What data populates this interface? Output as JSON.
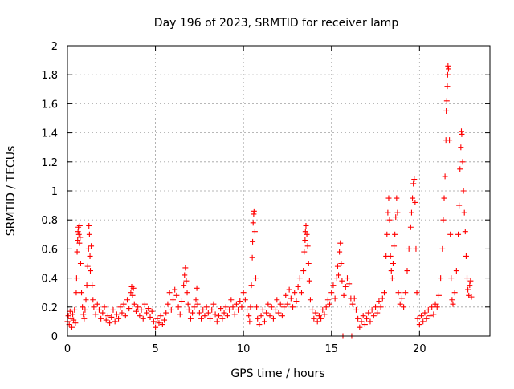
{
  "chart_data": {
    "type": "scatter",
    "title": "Day 196 of 2023, SRMTID for receiver lamp",
    "xlabel": "GPS time / hours",
    "ylabel": "SRMTID / TECUs",
    "xlim": [
      0,
      24
    ],
    "ylim": [
      0,
      2
    ],
    "grid": true,
    "marker": "+",
    "series_color": "#ff0000",
    "x_ticks": [
      0,
      5,
      10,
      15,
      20
    ],
    "x_tick_labels": [
      "0",
      "5",
      "10",
      "15",
      "20"
    ],
    "y_ticks": [
      0,
      0.2,
      0.4,
      0.6,
      0.8,
      1,
      1.2,
      1.4,
      1.6,
      1.8,
      2
    ],
    "y_tick_labels": [
      "0",
      "0.2",
      "0.4",
      "0.6",
      "0.8",
      "1",
      "1.2",
      "1.4",
      "1.6",
      "1.8",
      "2"
    ],
    "series": [
      {
        "name": "SRMTID",
        "points": [
          [
            0.0,
            0.1
          ],
          [
            0.05,
            0.14
          ],
          [
            0.1,
            0.08
          ],
          [
            0.15,
            0.17
          ],
          [
            0.2,
            0.12
          ],
          [
            0.25,
            0.06
          ],
          [
            0.3,
            0.15
          ],
          [
            0.35,
            0.11
          ],
          [
            0.4,
            0.18
          ],
          [
            0.45,
            0.09
          ],
          [
            0.5,
            0.3
          ],
          [
            0.52,
            0.4
          ],
          [
            0.55,
            0.58
          ],
          [
            0.58,
            0.66
          ],
          [
            0.6,
            0.72
          ],
          [
            0.62,
            0.75
          ],
          [
            0.65,
            0.7
          ],
          [
            0.68,
            0.64
          ],
          [
            0.7,
            0.76
          ],
          [
            0.72,
            0.68
          ],
          [
            0.75,
            0.5
          ],
          [
            0.8,
            0.3
          ],
          [
            0.85,
            0.2
          ],
          [
            0.9,
            0.15
          ],
          [
            0.95,
            0.12
          ],
          [
            1.0,
            0.18
          ],
          [
            1.05,
            0.25
          ],
          [
            1.1,
            0.35
          ],
          [
            1.15,
            0.48
          ],
          [
            1.2,
            0.6
          ],
          [
            1.22,
            0.76
          ],
          [
            1.25,
            0.7
          ],
          [
            1.28,
            0.55
          ],
          [
            1.3,
            0.45
          ],
          [
            1.35,
            0.62
          ],
          [
            1.4,
            0.35
          ],
          [
            1.45,
            0.25
          ],
          [
            1.5,
            0.2
          ],
          [
            1.6,
            0.15
          ],
          [
            1.7,
            0.22
          ],
          [
            1.8,
            0.18
          ],
          [
            1.9,
            0.12
          ],
          [
            2.0,
            0.16
          ],
          [
            2.1,
            0.2
          ],
          [
            2.2,
            0.11
          ],
          [
            2.3,
            0.14
          ],
          [
            2.4,
            0.09
          ],
          [
            2.5,
            0.13
          ],
          [
            2.6,
            0.18
          ],
          [
            2.7,
            0.1
          ],
          [
            2.8,
            0.15
          ],
          [
            2.9,
            0.12
          ],
          [
            3.0,
            0.2
          ],
          [
            3.1,
            0.16
          ],
          [
            3.2,
            0.22
          ],
          [
            3.3,
            0.14
          ],
          [
            3.4,
            0.25
          ],
          [
            3.5,
            0.19
          ],
          [
            3.6,
            0.3
          ],
          [
            3.65,
            0.34
          ],
          [
            3.7,
            0.28
          ],
          [
            3.75,
            0.33
          ],
          [
            3.8,
            0.22
          ],
          [
            3.9,
            0.17
          ],
          [
            4.0,
            0.2
          ],
          [
            4.1,
            0.14
          ],
          [
            4.2,
            0.18
          ],
          [
            4.3,
            0.12
          ],
          [
            4.4,
            0.22
          ],
          [
            4.5,
            0.16
          ],
          [
            4.6,
            0.19
          ],
          [
            4.7,
            0.13
          ],
          [
            4.8,
            0.17
          ],
          [
            4.9,
            0.1
          ],
          [
            5.0,
            0.06
          ],
          [
            5.1,
            0.12
          ],
          [
            5.2,
            0.09
          ],
          [
            5.3,
            0.14
          ],
          [
            5.4,
            0.08
          ],
          [
            5.5,
            0.11
          ],
          [
            5.6,
            0.16
          ],
          [
            5.7,
            0.22
          ],
          [
            5.8,
            0.3
          ],
          [
            5.9,
            0.18
          ],
          [
            6.0,
            0.25
          ],
          [
            6.1,
            0.32
          ],
          [
            6.2,
            0.28
          ],
          [
            6.3,
            0.2
          ],
          [
            6.4,
            0.15
          ],
          [
            6.5,
            0.24
          ],
          [
            6.6,
            0.35
          ],
          [
            6.65,
            0.42
          ],
          [
            6.7,
            0.47
          ],
          [
            6.75,
            0.38
          ],
          [
            6.8,
            0.3
          ],
          [
            6.85,
            0.22
          ],
          [
            6.9,
            0.18
          ],
          [
            7.0,
            0.12
          ],
          [
            7.1,
            0.16
          ],
          [
            7.2,
            0.2
          ],
          [
            7.3,
            0.25
          ],
          [
            7.35,
            0.33
          ],
          [
            7.4,
            0.22
          ],
          [
            7.5,
            0.16
          ],
          [
            7.6,
            0.12
          ],
          [
            7.7,
            0.18
          ],
          [
            7.8,
            0.14
          ],
          [
            7.9,
            0.2
          ],
          [
            8.0,
            0.16
          ],
          [
            8.1,
            0.12
          ],
          [
            8.2,
            0.18
          ],
          [
            8.3,
            0.22
          ],
          [
            8.4,
            0.15
          ],
          [
            8.5,
            0.1
          ],
          [
            8.6,
            0.14
          ],
          [
            8.7,
            0.19
          ],
          [
            8.8,
            0.12
          ],
          [
            8.9,
            0.16
          ],
          [
            9.0,
            0.2
          ],
          [
            9.1,
            0.14
          ],
          [
            9.2,
            0.18
          ],
          [
            9.3,
            0.25
          ],
          [
            9.4,
            0.2
          ],
          [
            9.5,
            0.15
          ],
          [
            9.6,
            0.22
          ],
          [
            9.7,
            0.18
          ],
          [
            9.8,
            0.24
          ],
          [
            9.9,
            0.2
          ],
          [
            10.0,
            0.3
          ],
          [
            10.1,
            0.25
          ],
          [
            10.2,
            0.18
          ],
          [
            10.3,
            0.14
          ],
          [
            10.35,
            0.1
          ],
          [
            10.4,
            0.2
          ],
          [
            10.45,
            0.35
          ],
          [
            10.5,
            0.54
          ],
          [
            10.52,
            0.65
          ],
          [
            10.55,
            0.78
          ],
          [
            10.58,
            0.84
          ],
          [
            10.6,
            0.86
          ],
          [
            10.65,
            0.72
          ],
          [
            10.7,
            0.4
          ],
          [
            10.75,
            0.2
          ],
          [
            10.8,
            0.12
          ],
          [
            10.9,
            0.08
          ],
          [
            11.0,
            0.14
          ],
          [
            11.1,
            0.18
          ],
          [
            11.2,
            0.1
          ],
          [
            11.3,
            0.16
          ],
          [
            11.4,
            0.22
          ],
          [
            11.5,
            0.14
          ],
          [
            11.6,
            0.2
          ],
          [
            11.7,
            0.12
          ],
          [
            11.8,
            0.18
          ],
          [
            11.9,
            0.25
          ],
          [
            12.0,
            0.16
          ],
          [
            12.1,
            0.22
          ],
          [
            12.2,
            0.14
          ],
          [
            12.3,
            0.2
          ],
          [
            12.4,
            0.28
          ],
          [
            12.5,
            0.22
          ],
          [
            12.6,
            0.32
          ],
          [
            12.7,
            0.26
          ],
          [
            12.8,
            0.2
          ],
          [
            12.9,
            0.3
          ],
          [
            13.0,
            0.24
          ],
          [
            13.1,
            0.34
          ],
          [
            13.2,
            0.4
          ],
          [
            13.3,
            0.3
          ],
          [
            13.4,
            0.45
          ],
          [
            13.45,
            0.58
          ],
          [
            13.5,
            0.66
          ],
          [
            13.52,
            0.72
          ],
          [
            13.55,
            0.76
          ],
          [
            13.6,
            0.7
          ],
          [
            13.65,
            0.62
          ],
          [
            13.7,
            0.5
          ],
          [
            13.75,
            0.38
          ],
          [
            13.8,
            0.25
          ],
          [
            13.9,
            0.18
          ],
          [
            14.0,
            0.12
          ],
          [
            14.1,
            0.16
          ],
          [
            14.2,
            0.1
          ],
          [
            14.3,
            0.14
          ],
          [
            14.4,
            0.12
          ],
          [
            14.5,
            0.18
          ],
          [
            14.6,
            0.15
          ],
          [
            14.7,
            0.2
          ],
          [
            14.8,
            0.25
          ],
          [
            14.9,
            0.22
          ],
          [
            15.0,
            0.3
          ],
          [
            15.1,
            0.35
          ],
          [
            15.2,
            0.26
          ],
          [
            15.3,
            0.4
          ],
          [
            15.35,
            0.48
          ],
          [
            15.4,
            0.42
          ],
          [
            15.45,
            0.58
          ],
          [
            15.5,
            0.64
          ],
          [
            15.55,
            0.5
          ],
          [
            15.6,
            0.38
          ],
          [
            15.65,
            0.0
          ],
          [
            15.7,
            0.28
          ],
          [
            15.8,
            0.34
          ],
          [
            15.9,
            0.4
          ],
          [
            16.0,
            0.36
          ],
          [
            16.1,
            0.26
          ],
          [
            16.15,
            0.0
          ],
          [
            16.2,
            0.22
          ],
          [
            16.3,
            0.26
          ],
          [
            16.4,
            0.18
          ],
          [
            16.5,
            0.12
          ],
          [
            16.6,
            0.06
          ],
          [
            16.7,
            0.1
          ],
          [
            16.8,
            0.14
          ],
          [
            16.9,
            0.08
          ],
          [
            17.0,
            0.12
          ],
          [
            17.1,
            0.16
          ],
          [
            17.2,
            0.1
          ],
          [
            17.3,
            0.18
          ],
          [
            17.4,
            0.14
          ],
          [
            17.5,
            0.2
          ],
          [
            17.6,
            0.16
          ],
          [
            17.7,
            0.24
          ],
          [
            17.8,
            0.2
          ],
          [
            17.9,
            0.26
          ],
          [
            18.0,
            0.3
          ],
          [
            18.1,
            0.55
          ],
          [
            18.15,
            0.7
          ],
          [
            18.2,
            0.85
          ],
          [
            18.25,
            0.95
          ],
          [
            18.3,
            0.8
          ],
          [
            18.35,
            0.55
          ],
          [
            18.4,
            0.45
          ],
          [
            18.45,
            0.4
          ],
          [
            18.5,
            0.5
          ],
          [
            18.55,
            0.62
          ],
          [
            18.6,
            0.7
          ],
          [
            18.65,
            0.82
          ],
          [
            18.7,
            0.95
          ],
          [
            18.75,
            0.85
          ],
          [
            18.8,
            0.3
          ],
          [
            18.9,
            0.22
          ],
          [
            19.0,
            0.26
          ],
          [
            19.1,
            0.2
          ],
          [
            19.2,
            0.3
          ],
          [
            19.3,
            0.45
          ],
          [
            19.4,
            0.6
          ],
          [
            19.5,
            0.75
          ],
          [
            19.55,
            0.85
          ],
          [
            19.6,
            0.95
          ],
          [
            19.65,
            1.05
          ],
          [
            19.7,
            1.08
          ],
          [
            19.75,
            0.92
          ],
          [
            19.8,
            0.6
          ],
          [
            19.85,
            0.3
          ],
          [
            19.9,
            0.12
          ],
          [
            20.0,
            0.08
          ],
          [
            20.1,
            0.14
          ],
          [
            20.2,
            0.1
          ],
          [
            20.3,
            0.16
          ],
          [
            20.4,
            0.12
          ],
          [
            20.5,
            0.18
          ],
          [
            20.6,
            0.14
          ],
          [
            20.7,
            0.2
          ],
          [
            20.8,
            0.15
          ],
          [
            20.9,
            0.22
          ],
          [
            21.0,
            0.2
          ],
          [
            21.1,
            0.28
          ],
          [
            21.2,
            0.4
          ],
          [
            21.3,
            0.6
          ],
          [
            21.35,
            0.8
          ],
          [
            21.4,
            0.95
          ],
          [
            21.45,
            1.1
          ],
          [
            21.5,
            1.35
          ],
          [
            21.52,
            1.55
          ],
          [
            21.55,
            1.62
          ],
          [
            21.58,
            1.72
          ],
          [
            21.6,
            1.8
          ],
          [
            21.62,
            1.86
          ],
          [
            21.65,
            1.84
          ],
          [
            21.7,
            1.35
          ],
          [
            21.75,
            0.7
          ],
          [
            21.8,
            0.4
          ],
          [
            21.85,
            0.25
          ],
          [
            21.9,
            0.22
          ],
          [
            22.0,
            0.3
          ],
          [
            22.1,
            0.45
          ],
          [
            22.2,
            0.7
          ],
          [
            22.25,
            0.9
          ],
          [
            22.3,
            1.15
          ],
          [
            22.35,
            1.3
          ],
          [
            22.38,
            1.41
          ],
          [
            22.4,
            1.39
          ],
          [
            22.45,
            1.2
          ],
          [
            22.5,
            1.0
          ],
          [
            22.55,
            0.85
          ],
          [
            22.6,
            0.72
          ],
          [
            22.65,
            0.55
          ],
          [
            22.7,
            0.4
          ],
          [
            22.75,
            0.32
          ],
          [
            22.8,
            0.28
          ],
          [
            22.85,
            0.35
          ],
          [
            22.9,
            0.38
          ],
          [
            22.95,
            0.27
          ]
        ]
      }
    ]
  }
}
